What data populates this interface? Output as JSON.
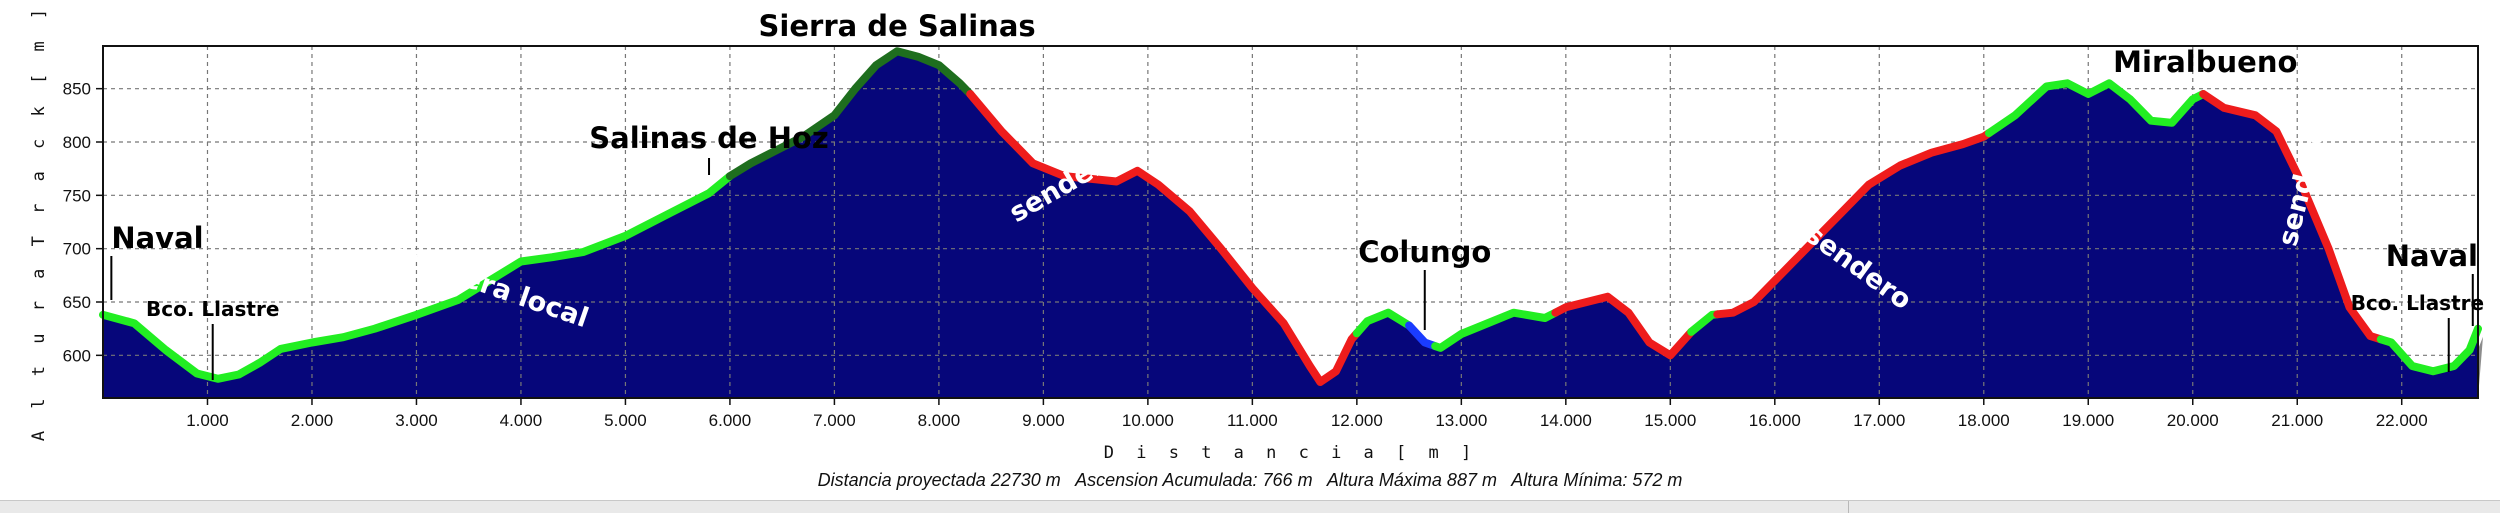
{
  "chart_data": {
    "type": "area",
    "title": "",
    "xlabel": "D i s t a n c i a   [ m ]",
    "ylabel": "A l t u r a   T r a c k   [ m ]",
    "xlim": [
      0,
      22730
    ],
    "ylim": [
      560,
      890
    ],
    "grid": true,
    "x_ticks": [
      {
        "value": 1000,
        "label": "1.000"
      },
      {
        "value": 2000,
        "label": "2.000"
      },
      {
        "value": 3000,
        "label": "3.000"
      },
      {
        "value": 4000,
        "label": "4.000"
      },
      {
        "value": 5000,
        "label": "5.000"
      },
      {
        "value": 6000,
        "label": "6.000"
      },
      {
        "value": 7000,
        "label": "7.000"
      },
      {
        "value": 8000,
        "label": "8.000"
      },
      {
        "value": 9000,
        "label": "9.000"
      },
      {
        "value": 10000,
        "label": "10.000"
      },
      {
        "value": 11000,
        "label": "11.000"
      },
      {
        "value": 12000,
        "label": "12.000"
      },
      {
        "value": 13000,
        "label": "13.000"
      },
      {
        "value": 14000,
        "label": "14.000"
      },
      {
        "value": 15000,
        "label": "15.000"
      },
      {
        "value": 16000,
        "label": "16.000"
      },
      {
        "value": 17000,
        "label": "17.000"
      },
      {
        "value": 18000,
        "label": "18.000"
      },
      {
        "value": 19000,
        "label": "19.000"
      },
      {
        "value": 20000,
        "label": "20.000"
      },
      {
        "value": 21000,
        "label": "21.000"
      },
      {
        "value": 22000,
        "label": "22.000"
      }
    ],
    "y_ticks": [
      {
        "value": 600,
        "label": "600"
      },
      {
        "value": 650,
        "label": "650"
      },
      {
        "value": 700,
        "label": "700"
      },
      {
        "value": 750,
        "label": "750"
      },
      {
        "value": 800,
        "label": "800"
      },
      {
        "value": 850,
        "label": "850"
      }
    ],
    "profile": [
      [
        0,
        638
      ],
      [
        300,
        630
      ],
      [
        600,
        605
      ],
      [
        900,
        583
      ],
      [
        1100,
        578
      ],
      [
        1300,
        582
      ],
      [
        1500,
        593
      ],
      [
        1700,
        606
      ],
      [
        2000,
        612
      ],
      [
        2300,
        617
      ],
      [
        2600,
        625
      ],
      [
        3000,
        638
      ],
      [
        3400,
        652
      ],
      [
        3700,
        670
      ],
      [
        4000,
        688
      ],
      [
        4300,
        692
      ],
      [
        4600,
        697
      ],
      [
        5000,
        712
      ],
      [
        5400,
        732
      ],
      [
        5800,
        752
      ],
      [
        6000,
        768
      ],
      [
        6200,
        780
      ],
      [
        6400,
        790
      ],
      [
        6700,
        805
      ],
      [
        7000,
        825
      ],
      [
        7200,
        850
      ],
      [
        7400,
        872
      ],
      [
        7600,
        885
      ],
      [
        7800,
        880
      ],
      [
        8000,
        872
      ],
      [
        8200,
        855
      ],
      [
        8300,
        845
      ],
      [
        8600,
        810
      ],
      [
        8900,
        780
      ],
      [
        9200,
        768
      ],
      [
        9500,
        765
      ],
      [
        9700,
        763
      ],
      [
        9900,
        773
      ],
      [
        10100,
        760
      ],
      [
        10400,
        735
      ],
      [
        10700,
        700
      ],
      [
        11000,
        663
      ],
      [
        11300,
        630
      ],
      [
        11550,
        590
      ],
      [
        11650,
        575
      ],
      [
        11800,
        585
      ],
      [
        11950,
        615
      ],
      [
        12100,
        632
      ],
      [
        12300,
        640
      ],
      [
        12500,
        628
      ],
      [
        12650,
        612
      ],
      [
        12800,
        607
      ],
      [
        13000,
        620
      ],
      [
        13200,
        628
      ],
      [
        13500,
        640
      ],
      [
        13800,
        635
      ],
      [
        14000,
        645
      ],
      [
        14200,
        650
      ],
      [
        14400,
        655
      ],
      [
        14600,
        640
      ],
      [
        14800,
        612
      ],
      [
        15000,
        600
      ],
      [
        15200,
        622
      ],
      [
        15400,
        638
      ],
      [
        15600,
        640
      ],
      [
        15800,
        650
      ],
      [
        16000,
        670
      ],
      [
        16300,
        700
      ],
      [
        16600,
        730
      ],
      [
        16900,
        760
      ],
      [
        17200,
        778
      ],
      [
        17500,
        790
      ],
      [
        17800,
        798
      ],
      [
        18000,
        805
      ],
      [
        18300,
        825
      ],
      [
        18600,
        852
      ],
      [
        18800,
        855
      ],
      [
        19000,
        845
      ],
      [
        19200,
        855
      ],
      [
        19400,
        840
      ],
      [
        19600,
        820
      ],
      [
        19800,
        818
      ],
      [
        20000,
        840
      ],
      [
        20100,
        845
      ],
      [
        20300,
        832
      ],
      [
        20600,
        825
      ],
      [
        20800,
        810
      ],
      [
        21000,
        770
      ],
      [
        21300,
        700
      ],
      [
        21500,
        645
      ],
      [
        21700,
        618
      ],
      [
        21900,
        612
      ],
      [
        22100,
        590
      ],
      [
        22300,
        585
      ],
      [
        22500,
        590
      ],
      [
        22650,
        605
      ],
      [
        22730,
        625
      ]
    ],
    "segments": [
      {
        "from": 0,
        "to": 6000,
        "color": "#22ee22"
      },
      {
        "from": 6000,
        "to": 8300,
        "color": "#1e6e1e"
      },
      {
        "from": 8300,
        "to": 12000,
        "color": "#ee1c1c"
      },
      {
        "from": 12000,
        "to": 12500,
        "color": "#22ee22"
      },
      {
        "from": 12500,
        "to": 12750,
        "color": "#1a3cff"
      },
      {
        "from": 12750,
        "to": 13900,
        "color": "#22ee22"
      },
      {
        "from": 13900,
        "to": 15200,
        "color": "#ee1c1c"
      },
      {
        "from": 15200,
        "to": 15450,
        "color": "#22ee22"
      },
      {
        "from": 15450,
        "to": 18050,
        "color": "#ee1c1c"
      },
      {
        "from": 18050,
        "to": 20100,
        "color": "#22ee22"
      },
      {
        "from": 20100,
        "to": 21800,
        "color": "#ee1c1c"
      },
      {
        "from": 21800,
        "to": 22730,
        "color": "#22ee22"
      }
    ],
    "annotations": [
      {
        "text": "Sierra de Salinas",
        "x": 7600,
        "y": 885,
        "kind": "place"
      },
      {
        "text": "Salinas de Hoz",
        "x": 5800,
        "y": 756,
        "kind": "place"
      },
      {
        "text": "Naval",
        "x": 80,
        "y": 650,
        "kind": "place"
      },
      {
        "text": "Bco. Llastre",
        "x": 1050,
        "y": 582,
        "kind": "place-small"
      },
      {
        "text": "Colungo",
        "x": 12650,
        "y": 620,
        "kind": "place"
      },
      {
        "text": "Miralbueno",
        "x": 20100,
        "y": 845,
        "kind": "place"
      },
      {
        "text": "Naval",
        "x": 22680,
        "y": 620,
        "kind": "place"
      },
      {
        "text": "Bco. Llastre",
        "x": 22450,
        "y": 590,
        "kind": "place-small"
      }
    ],
    "trail_labels": [
      {
        "text": "carretera local",
        "x": 3600,
        "y": 660,
        "angle": -19
      },
      {
        "text": "sendero",
        "x": 9250,
        "y": 753,
        "angle": 30
      },
      {
        "text": "sendero",
        "x": 16750,
        "y": 676,
        "angle": -36
      },
      {
        "text": "sendero",
        "x": 21130,
        "y": 757,
        "angle": 76
      }
    ],
    "colors": {
      "fill": "#06067a",
      "shadow": "#8c8c8c",
      "plot_background": "#ffffff",
      "grid": "#777777"
    }
  },
  "summary": "Distancia proyectada 22730 m   Ascension Acumulada: 766 m   Altura Máxima 887 m   Altura Mínima: 572 m"
}
